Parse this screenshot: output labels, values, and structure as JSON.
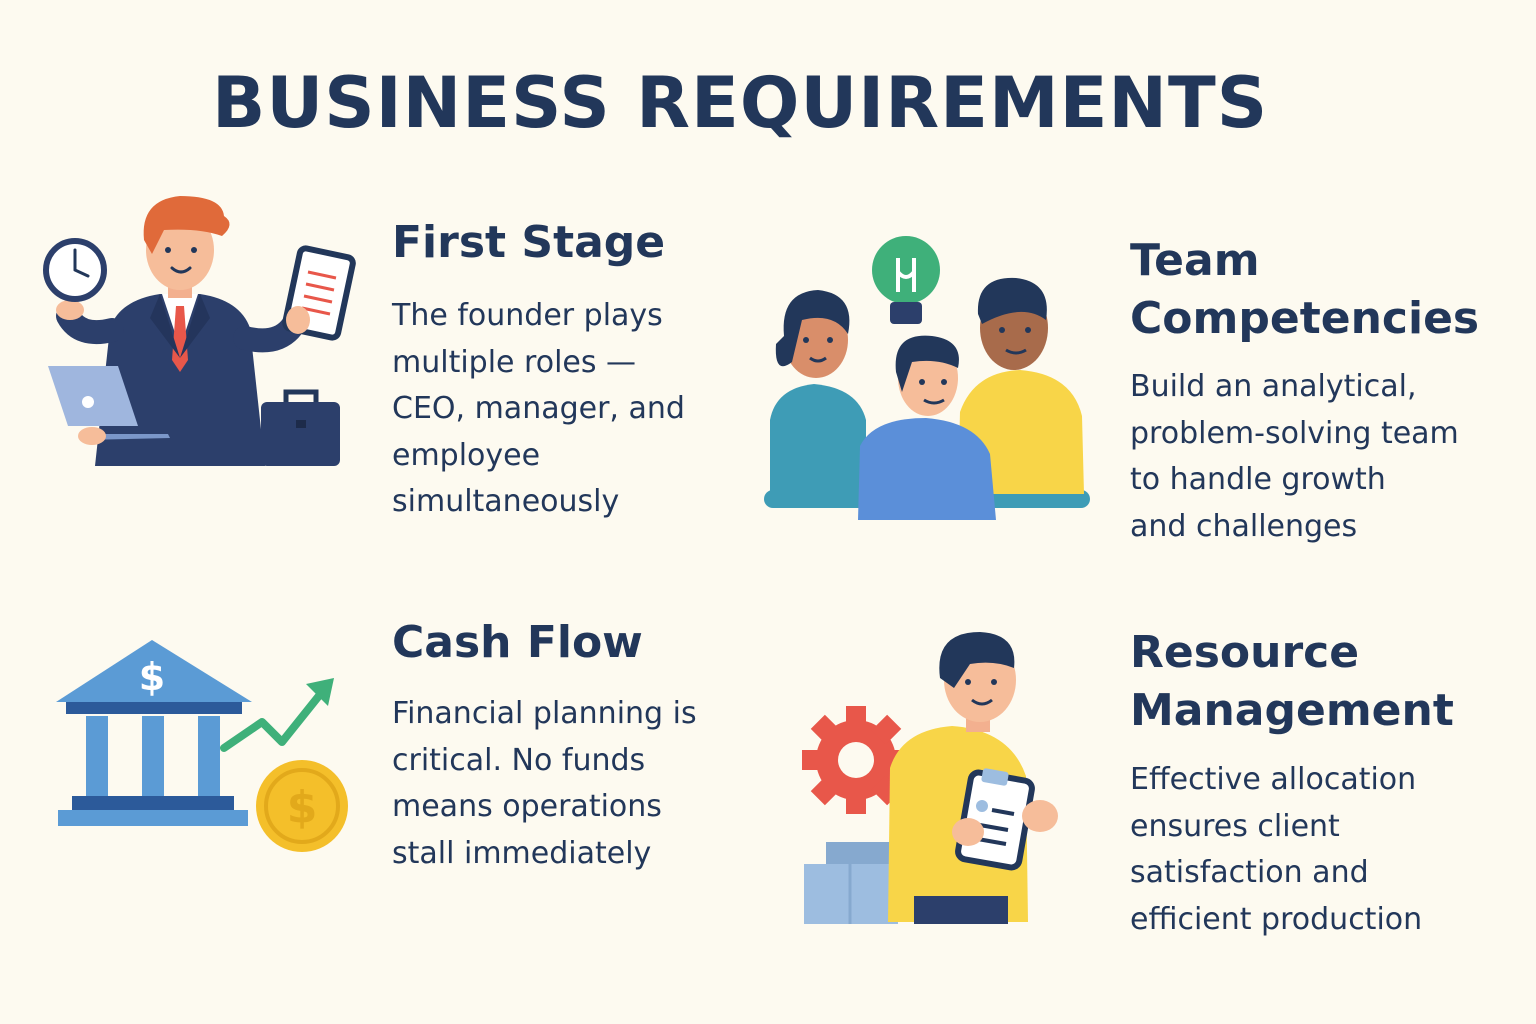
{
  "title": "BUSINESS REQUIREMENTS",
  "sections": [
    {
      "title_lines": [
        "First Stage"
      ],
      "body_lines": [
        "The founder plays",
        "multiple roles —",
        "CEO, manager, and",
        "employee",
        "simultaneously"
      ],
      "icon": "founder-multitasking-icon"
    },
    {
      "title_lines": [
        "Team",
        "Competencies"
      ],
      "body_lines": [
        "Build an analytical,",
        "problem-solving team",
        "to handle growth",
        "and challenges"
      ],
      "icon": "team-idea-icon"
    },
    {
      "title_lines": [
        "Cash Flow"
      ],
      "body_lines": [
        "Financial planning is",
        "critical. No funds",
        "means operations",
        "stall immediately"
      ],
      "icon": "bank-growth-icon"
    },
    {
      "title_lines": [
        "Resource",
        "Management"
      ],
      "body_lines": [
        "Effective allocation",
        "ensures client",
        "satisfaction and",
        "efficient production"
      ],
      "icon": "resource-manager-icon"
    }
  ],
  "colors": {
    "background": "#fdfaf0",
    "text": "#22375a",
    "navy": "#2c3f6b",
    "blue": "#5b9bd5",
    "yellow": "#f8d548",
    "green": "#3fb07a",
    "red": "#e8574a",
    "gold": "#f4bf2a"
  }
}
